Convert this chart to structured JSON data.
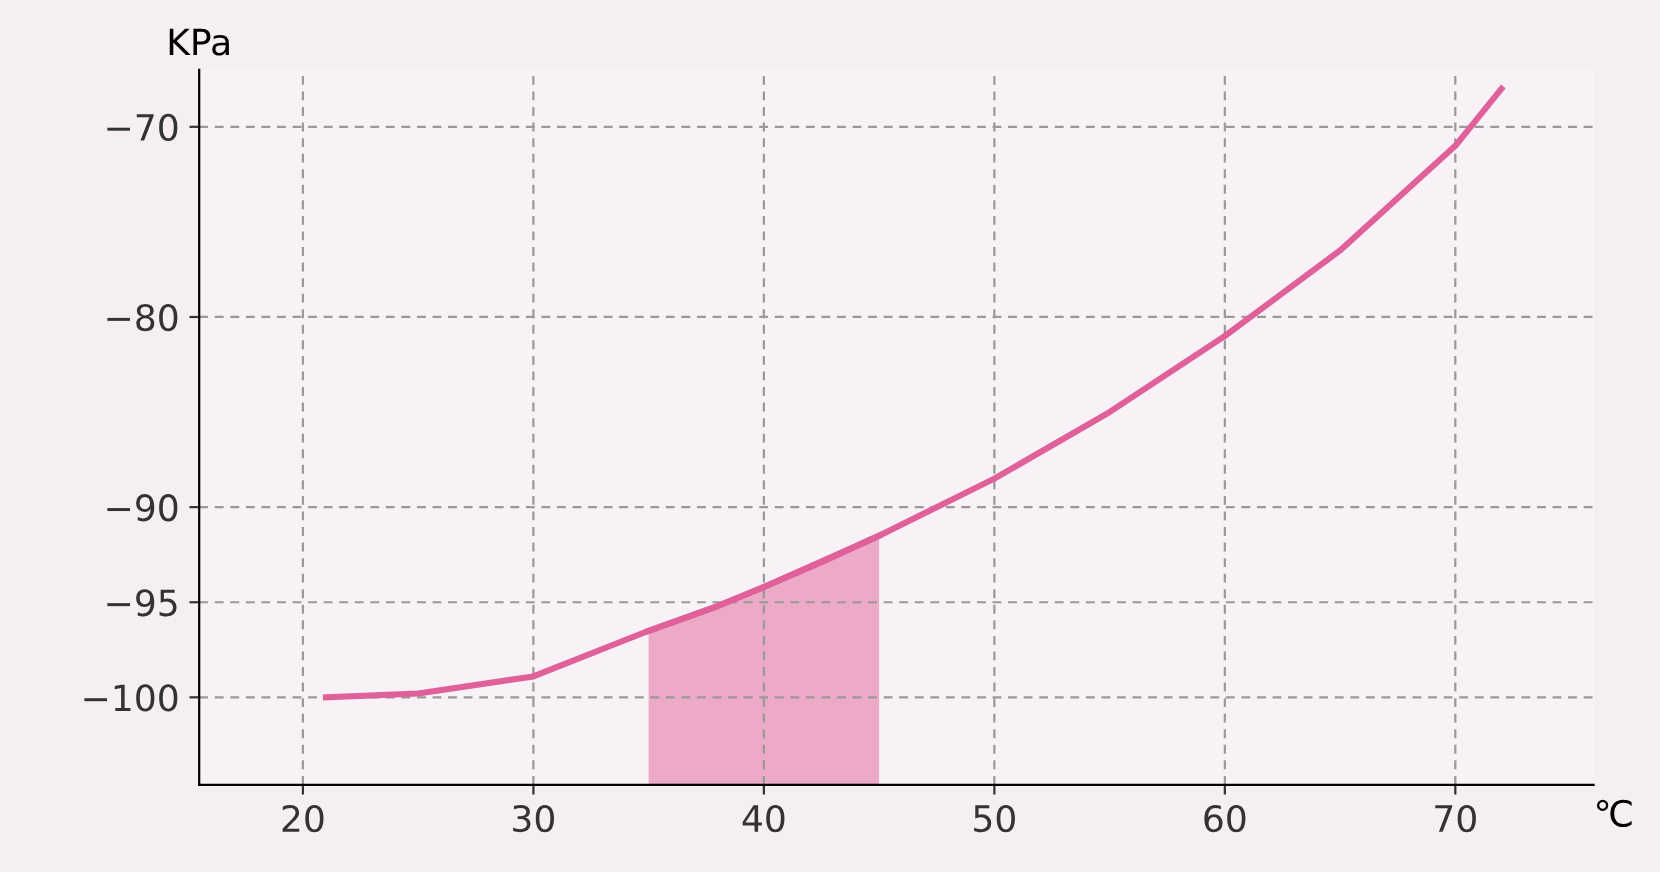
{
  "chart_data": {
    "type": "line",
    "ylabel": "KPa",
    "xlabel": "℃",
    "x": [
      21,
      25,
      30,
      35,
      38,
      40,
      45,
      50,
      55,
      60,
      65,
      70,
      72
    ],
    "series": [
      {
        "color": "#e0609a",
        "values": [
          -100,
          -99.8,
          -98.9,
          -96.5,
          -95.2,
          -94.2,
          -91.5,
          -88.5,
          -85,
          -81,
          -76.5,
          -71,
          -68
        ]
      },
      {
        "color": "#e0609a",
        "x": [
          35,
          38,
          40,
          42.5,
          45
        ],
        "values": [
          -96.5,
          -95.2,
          -94.2,
          -92.9,
          -91.5
        ],
        "lower": [
          -104.6,
          -104.6,
          -104.6,
          -104.6,
          -104.6
        ],
        "upper": [
          -96.5,
          -95.2,
          -94.2,
          -92.9,
          -91.5
        ]
      }
    ],
    "xlim": [
      15.5,
      76
    ],
    "ylim": [
      -104.6,
      -67
    ],
    "xticks": [
      20,
      30,
      40,
      50,
      60,
      70
    ],
    "yticks": [
      -70,
      -80,
      -90,
      -95,
      -100
    ],
    "grid": true,
    "marker": "none",
    "line_style": "solid",
    "legend": false
  }
}
